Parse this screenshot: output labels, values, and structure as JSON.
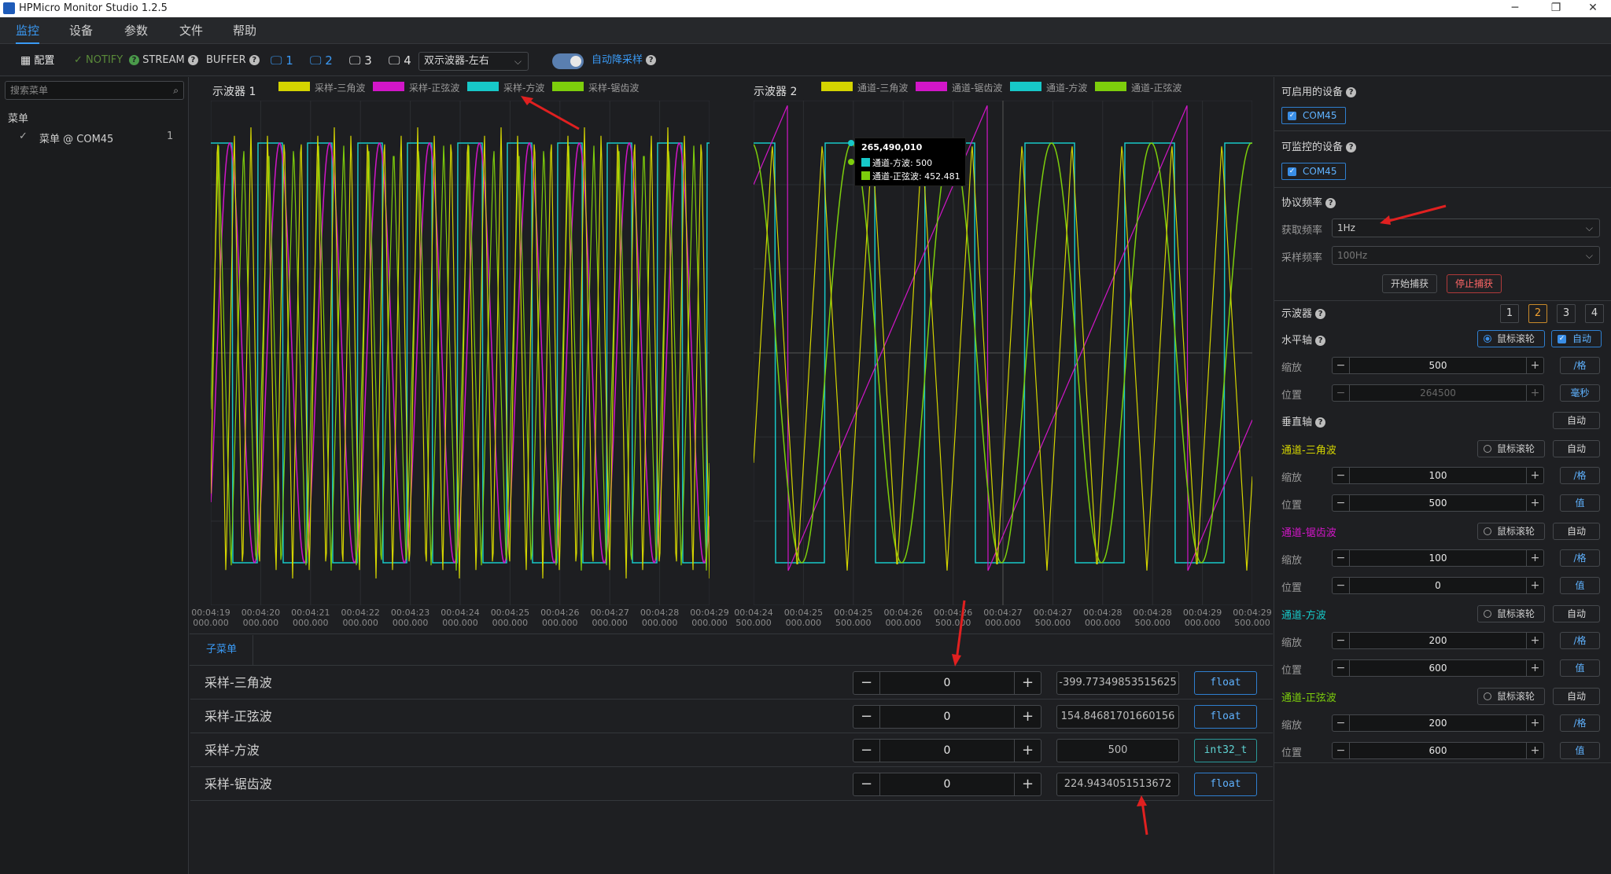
{
  "window": {
    "title": "HPMicro Monitor Studio 1.2.5",
    "minimize": "─",
    "restore": "❐",
    "close": "✕"
  },
  "menubar": {
    "items": [
      "监控",
      "设备",
      "参数",
      "文件",
      "帮助"
    ],
    "active": 0
  },
  "toolbar": {
    "config_label": "配置",
    "notify_label": "NOTIFY",
    "stream_label": "STREAM",
    "buffer_label": "BUFFER",
    "scopes": [
      "1",
      "2",
      "3",
      "4"
    ],
    "layout_select": "双示波器-左右",
    "auto_downsample_label": "自动降采样",
    "auto_downsample_on": true
  },
  "left": {
    "search_placeholder": "搜索菜单",
    "section_label": "菜单",
    "items": [
      {
        "label": "菜单 @ COM45",
        "count": "1",
        "checked": true
      }
    ]
  },
  "colors": {
    "triangle": "#d4d400",
    "sine": "#7dce0c",
    "square": "#17c8c8",
    "sawtooth": "#d216c8",
    "accent": "#3a9af5"
  },
  "scope1": {
    "title": "示波器 1",
    "legend": [
      {
        "name": "采样-三角波",
        "color": "#d4d400"
      },
      {
        "name": "采样-正弦波",
        "color": "#d216c8"
      },
      {
        "name": "采样-方波",
        "color": "#17c8c8"
      },
      {
        "name": "采样-锯齿波",
        "color": "#7dce0c"
      }
    ],
    "x_ticks": [
      [
        "00:04:19",
        "000.000"
      ],
      [
        "00:04:20",
        "000.000"
      ],
      [
        "00:04:21",
        "000.000"
      ],
      [
        "00:04:22",
        "000.000"
      ],
      [
        "00:04:23",
        "000.000"
      ],
      [
        "00:04:24",
        "000.000"
      ],
      [
        "00:04:25",
        "000.000"
      ],
      [
        "00:04:26",
        "000.000"
      ],
      [
        "00:04:27",
        "000.000"
      ],
      [
        "00:04:28",
        "000.000"
      ],
      [
        "00:04:29",
        "000.000"
      ]
    ]
  },
  "scope2": {
    "title": "示波器 2",
    "legend": [
      {
        "name": "通道-三角波",
        "color": "#d4d400"
      },
      {
        "name": "通道-锯齿波",
        "color": "#d216c8"
      },
      {
        "name": "通道-方波",
        "color": "#17c8c8"
      },
      {
        "name": "通道-正弦波",
        "color": "#7dce0c"
      }
    ],
    "x_ticks": [
      [
        "00:04:24",
        "500.000"
      ],
      [
        "00:04:25",
        "000.000"
      ],
      [
        "00:04:25",
        "500.000"
      ],
      [
        "00:04:26",
        "000.000"
      ],
      [
        "00:04:26",
        "500.000"
      ],
      [
        "00:04:27",
        "000.000"
      ],
      [
        "00:04:27",
        "500.000"
      ],
      [
        "00:04:28",
        "000.000"
      ],
      [
        "00:04:28",
        "500.000"
      ],
      [
        "00:04:29",
        "000.000"
      ],
      [
        "00:04:29",
        "500.000"
      ]
    ],
    "tooltip": {
      "header": "265,490,010",
      "rows": [
        {
          "label": "通道-方波: 500",
          "color": "#17c8c8"
        },
        {
          "label": "通道-正弦波: 452.481",
          "color": "#7dce0c"
        }
      ]
    }
  },
  "submenu": {
    "tab_label": "子菜单",
    "rows": [
      {
        "name": "采样-三角波",
        "value": "0",
        "raw": "-399.77349853515625",
        "type": "float"
      },
      {
        "name": "采样-正弦波",
        "value": "0",
        "raw": "154.84681701660156",
        "type": "float"
      },
      {
        "name": "采样-方波",
        "value": "0",
        "raw": "500",
        "type": "int32_t"
      },
      {
        "name": "采样-锯齿波",
        "value": "0",
        "raw": "224.9434051513672",
        "type": "float"
      }
    ]
  },
  "right": {
    "available_devices_label": "可启用的设备",
    "available_device": "COM45",
    "monitor_devices_label": "可监控的设备",
    "monitor_device": "COM45",
    "protocol_freq_label": "协议频率",
    "fetch_freq_label": "获取频率",
    "fetch_freq": "1Hz",
    "sample_freq_label": "采样频率",
    "sample_freq": "100Hz",
    "start_capture": "开始捕获",
    "stop_capture": "停止捕获",
    "oscilloscope_label": "示波器",
    "scope_buttons": [
      "1",
      "2",
      "3",
      "4"
    ],
    "selected_scope": 1,
    "h_axis_label": "水平轴",
    "mouse_wheel_label": "鼠标滚轮",
    "auto_label": "自动",
    "zoom_label": "缩放",
    "position_label": "位置",
    "h_zoom": "500",
    "h_zoom_unit": "/格",
    "h_pos": "264500",
    "h_pos_unit": "毫秒",
    "v_axis_label": "垂直轴",
    "channels": [
      {
        "name": "通道-三角波",
        "color": "#d4d400",
        "zoom": "100",
        "zoom_unit": "/格",
        "pos": "500",
        "pos_unit": "值"
      },
      {
        "name": "通道-锯齿波",
        "color": "#d216c8",
        "zoom": "100",
        "zoom_unit": "/格",
        "pos": "0",
        "pos_unit": "值"
      },
      {
        "name": "通道-方波",
        "color": "#17c8c8",
        "zoom": "200",
        "zoom_unit": "/格",
        "pos": "600",
        "pos_unit": "值"
      },
      {
        "name": "通道-正弦波",
        "color": "#7dce0c",
        "zoom": "200",
        "zoom_unit": "/格",
        "pos": "600",
        "pos_unit": "值"
      }
    ]
  }
}
